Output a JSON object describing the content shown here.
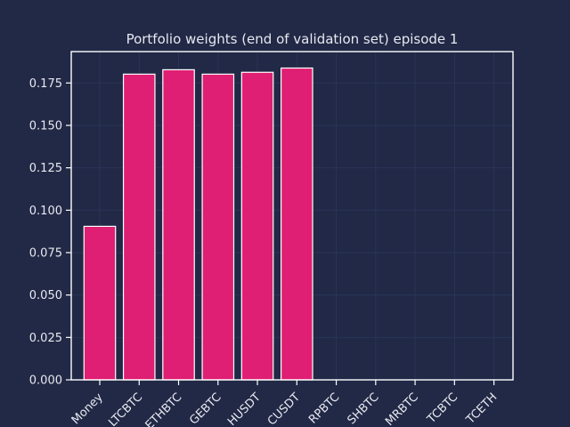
{
  "chart_data": {
    "type": "bar",
    "title": "Portfolio weights (end of validation set) episode 1",
    "xlabel": "",
    "ylabel": "",
    "categories": [
      "Money",
      "LTCBTC",
      "ETHBTC",
      "NEOGEBTC",
      "ETHUSDT",
      "BTCUSDT",
      "XRPBTC",
      "DASHBTC",
      "XMRBTC",
      "ETCBTC",
      "BTCETH"
    ],
    "visible_tick_labels": [
      "Money",
      "LTCBTC",
      "ETHBTC",
      "GEBTC",
      "HUSDT",
      "CUSDT",
      "RPBTC",
      "SHBTC",
      "MRBTC",
      "TCBTC",
      "TCETH"
    ],
    "values": [
      0.0905,
      0.1802,
      0.1828,
      0.1802,
      0.1813,
      0.1838,
      0,
      0,
      0,
      0,
      0
    ],
    "ylim": [
      0,
      0.1935
    ],
    "yticks": [
      0.0,
      0.025,
      0.05,
      0.075,
      0.1,
      0.125,
      0.15,
      0.175
    ],
    "ytick_labels": [
      "0.000",
      "0.025",
      "0.050",
      "0.075",
      "0.100",
      "0.125",
      "0.150",
      "0.175"
    ],
    "grid": true,
    "colors": {
      "background": "#212946",
      "bar_fill": "#df1f73",
      "bar_edge": "#ffffff",
      "grid": "#2a3459",
      "axis": "#ffffff",
      "text": "#e8e8f0"
    }
  }
}
